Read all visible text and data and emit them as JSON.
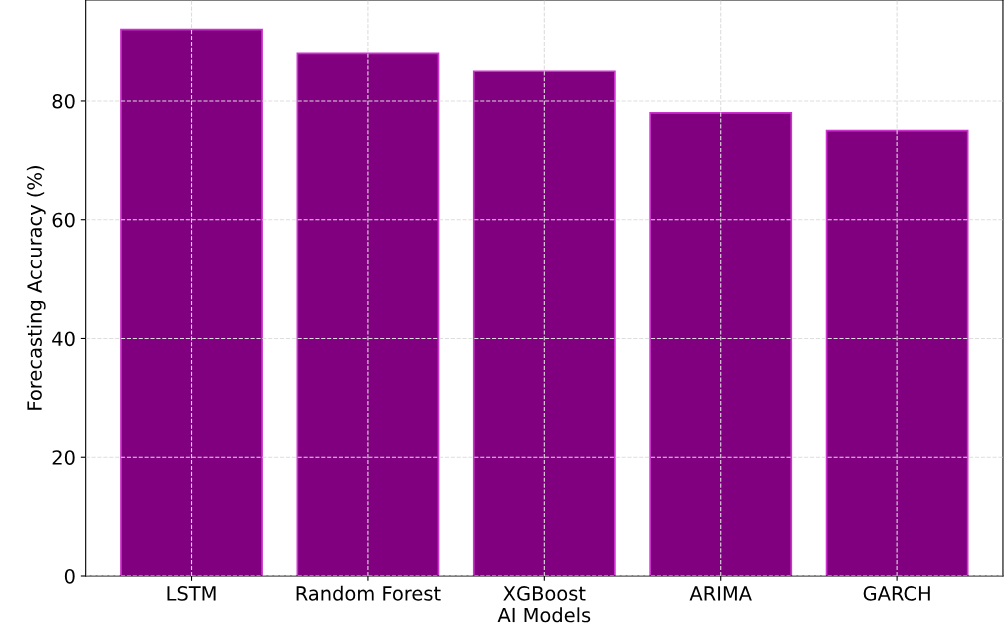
{
  "chart_data": {
    "type": "bar",
    "xlabel": "AI Models",
    "ylabel": "Forecasting Accuracy (%)",
    "categories": [
      "LSTM",
      "Random Forest",
      "XGBoost",
      "ARIMA",
      "GARCH"
    ],
    "values": [
      92,
      88,
      85,
      78,
      75
    ],
    "color": "#800080",
    "ylim": [
      0,
      97
    ],
    "yticks": [
      0,
      20,
      40,
      60,
      80
    ],
    "grid": true
  }
}
